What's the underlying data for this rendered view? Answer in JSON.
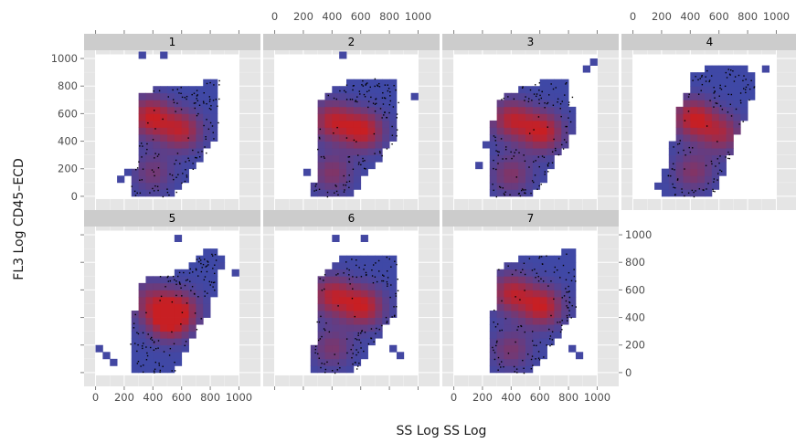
{
  "chart_data": {
    "type": "heatmap",
    "subtype": "faceted 2D density heatmap with scatter overlay",
    "xlabel": "SS Log SS Log",
    "ylabel": "FL3 Log CD45–ECD",
    "xlim": [
      -80,
      1150
    ],
    "ylim": [
      -100,
      1060
    ],
    "x_ticks": [
      0,
      200,
      400,
      600,
      800,
      1000
    ],
    "x_tick_labels": [
      "0",
      "200",
      "400",
      "600",
      "800",
      "1000"
    ],
    "y_ticks": [
      0,
      200,
      400,
      600,
      800,
      1000
    ],
    "y_tick_labels": [
      "0",
      "200",
      "400",
      "600",
      "800",
      "1000"
    ],
    "grid": true,
    "layout": {
      "rows": 2,
      "cols": 4
    },
    "colors": {
      "panel_background": "#e5e5e5",
      "strip_background": "#cccccc",
      "gridline": "#ffffff",
      "density_low": "#3f48a6",
      "density_high": "#c81f23",
      "point": "#000000"
    },
    "facets": [
      {
        "label": "1",
        "window": {
          "x": [
            0,
            1000
          ],
          "y": [
            -20,
            1030
          ]
        },
        "peaks": [
          {
            "x": 380,
            "y": 580,
            "w": 1.0
          },
          {
            "x": 600,
            "y": 480,
            "w": 0.9
          },
          {
            "x": 400,
            "y": 170,
            "w": 0.5
          }
        ],
        "region": [
          [
            230,
            0
          ],
          [
            300,
            330
          ],
          [
            280,
            700
          ],
          [
            440,
            800
          ],
          [
            650,
            800
          ],
          [
            860,
            860
          ],
          [
            860,
            450
          ],
          [
            640,
            130
          ],
          [
            550,
            0
          ]
        ],
        "stubs": [
          [
            220,
            190
          ],
          [
            180,
            120
          ],
          [
            330,
            1000
          ],
          [
            470,
            1000
          ]
        ]
      },
      {
        "label": "2",
        "window": {
          "x": [
            0,
            1000
          ],
          "y": [
            -20,
            1030
          ]
        },
        "peaks": [
          {
            "x": 400,
            "y": 550,
            "w": 0.9
          },
          {
            "x": 620,
            "y": 480,
            "w": 1.0
          },
          {
            "x": 400,
            "y": 170,
            "w": 0.6
          }
        ],
        "region": [
          [
            270,
            0
          ],
          [
            290,
            400
          ],
          [
            330,
            720
          ],
          [
            500,
            820
          ],
          [
            660,
            860
          ],
          [
            860,
            860
          ],
          [
            860,
            420
          ],
          [
            660,
            200
          ],
          [
            560,
            0
          ]
        ],
        "stubs": [
          [
            230,
            160
          ],
          [
            450,
            1000
          ],
          [
            960,
            700
          ]
        ]
      },
      {
        "label": "3",
        "window": {
          "x": [
            0,
            1000
          ],
          "y": [
            -20,
            1030
          ]
        },
        "peaks": [
          {
            "x": 400,
            "y": 560,
            "w": 0.9
          },
          {
            "x": 620,
            "y": 470,
            "w": 1.0
          },
          {
            "x": 400,
            "y": 160,
            "w": 0.6
          }
        ],
        "region": [
          [
            270,
            0
          ],
          [
            250,
            400
          ],
          [
            300,
            700
          ],
          [
            470,
            800
          ],
          [
            640,
            840
          ],
          [
            820,
            860
          ],
          [
            830,
            450
          ],
          [
            650,
            170
          ],
          [
            560,
            0
          ]
        ],
        "stubs": [
          [
            200,
            380
          ],
          [
            190,
            200
          ],
          [
            940,
            900
          ],
          [
            980,
            950
          ]
        ]
      },
      {
        "label": "4",
        "window": {
          "x": [
            0,
            1000
          ],
          "y": [
            -20,
            1030
          ]
        },
        "peaks": [
          {
            "x": 420,
            "y": 570,
            "w": 1.0
          },
          {
            "x": 620,
            "y": 460,
            "w": 0.75
          },
          {
            "x": 420,
            "y": 180,
            "w": 0.6
          }
        ],
        "region": [
          [
            180,
            0
          ],
          [
            250,
            300
          ],
          [
            330,
            650
          ],
          [
            420,
            880
          ],
          [
            560,
            940
          ],
          [
            800,
            930
          ],
          [
            860,
            820
          ],
          [
            680,
            300
          ],
          [
            550,
            0
          ]
        ],
        "stubs": [
          [
            920,
            900
          ],
          [
            200,
            150
          ],
          [
            180,
            60
          ]
        ]
      },
      {
        "label": "5",
        "window": {
          "x": [
            0,
            1000
          ],
          "y": [
            -20,
            1030
          ]
        },
        "peaks": [
          {
            "x": 510,
            "y": 380,
            "w": 1.0
          },
          {
            "x": 380,
            "y": 520,
            "w": 0.6
          },
          {
            "x": 600,
            "y": 470,
            "w": 0.6
          }
        ],
        "region": [
          [
            250,
            0
          ],
          [
            230,
            200
          ],
          [
            300,
            600
          ],
          [
            380,
            700
          ],
          [
            560,
            720
          ],
          [
            800,
            900
          ],
          [
            880,
            850
          ],
          [
            820,
            500
          ],
          [
            620,
            150
          ],
          [
            550,
            0
          ]
        ],
        "stubs": [
          [
            20,
            150
          ],
          [
            60,
            100
          ],
          [
            110,
            80
          ],
          [
            850,
            780
          ],
          [
            970,
            700
          ],
          [
            550,
            990
          ]
        ]
      },
      {
        "label": "6",
        "window": {
          "x": [
            0,
            1000
          ],
          "y": [
            -20,
            1030
          ]
        },
        "peaks": [
          {
            "x": 400,
            "y": 560,
            "w": 0.9
          },
          {
            "x": 620,
            "y": 480,
            "w": 1.0
          },
          {
            "x": 400,
            "y": 180,
            "w": 0.55
          }
        ],
        "region": [
          [
            270,
            0
          ],
          [
            280,
            380
          ],
          [
            300,
            700
          ],
          [
            460,
            830
          ],
          [
            650,
            830
          ],
          [
            860,
            850
          ],
          [
            860,
            450
          ],
          [
            660,
            180
          ],
          [
            560,
            0
          ]
        ],
        "stubs": [
          [
            840,
            170
          ],
          [
            860,
            130
          ],
          [
            400,
            990
          ],
          [
            600,
            980
          ]
        ]
      },
      {
        "label": "7",
        "window": {
          "x": [
            0,
            1000
          ],
          "y": [
            -20,
            1030
          ]
        },
        "peaks": [
          {
            "x": 400,
            "y": 580,
            "w": 0.9
          },
          {
            "x": 620,
            "y": 480,
            "w": 1.0
          },
          {
            "x": 400,
            "y": 170,
            "w": 0.55
          }
        ],
        "region": [
          [
            260,
            0
          ],
          [
            270,
            400
          ],
          [
            310,
            760
          ],
          [
            460,
            830
          ],
          [
            660,
            870
          ],
          [
            850,
            880
          ],
          [
            850,
            450
          ],
          [
            660,
            180
          ],
          [
            560,
            0
          ]
        ],
        "stubs": [
          [
            830,
            160
          ],
          [
            850,
            120
          ]
        ]
      }
    ]
  }
}
